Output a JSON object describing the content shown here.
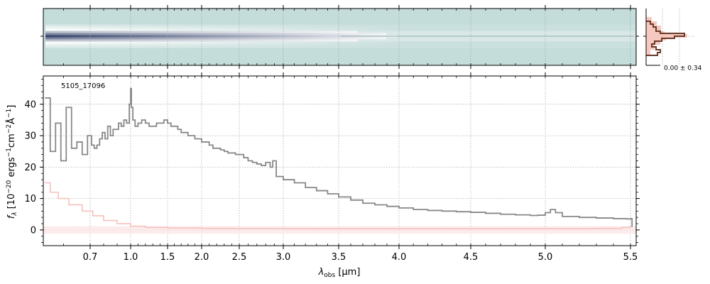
{
  "chart_data": [
    {
      "type": "heatmap",
      "panel": "2D spectrum",
      "x_range_um": [
        0.52,
        5.53
      ],
      "description_rows": "spatial",
      "grid": true,
      "colormap": [
        "#c4dcda",
        "#ffffff",
        "#2b3a63"
      ]
    },
    {
      "type": "line",
      "panel": "spatial profile",
      "annotation": "0.00 ± 0.34",
      "colors": {
        "fill": "#f5c9bf",
        "line": "#6b3a28"
      }
    },
    {
      "type": "line",
      "panel": "1D spectrum",
      "id_label": "5105_17096",
      "xlabel_main": "λ",
      "xlabel_sub": "obs",
      "xlabel_unit": " [μm]",
      "ylabel": "f_λ [10^-20 ergs^-1 cm^-2 Å^-1]",
      "x_scale": "custom (compressed at long wavelength)",
      "xlim": [
        0.52,
        5.53
      ],
      "ylim": [
        -5,
        49
      ],
      "xticks": [
        {
          "value": 0.7,
          "label": "0.7"
        },
        {
          "value": 1.0,
          "label": "1.0"
        },
        {
          "value": 1.5,
          "label": "1.5"
        },
        {
          "value": 2.0,
          "label": "2.0"
        },
        {
          "value": 2.5,
          "label": "2.5"
        },
        {
          "value": 3.0,
          "label": "3.0"
        },
        {
          "value": 3.5,
          "label": "3.5"
        },
        {
          "value": 4.0,
          "label": "4.0"
        },
        {
          "value": 4.5,
          "label": "4.5"
        },
        {
          "value": 5.0,
          "label": "5.0"
        },
        {
          "value": 5.5,
          "label": "5.5"
        }
      ],
      "yticks": [
        {
          "value": 0,
          "label": "0"
        },
        {
          "value": 10,
          "label": "10"
        },
        {
          "value": 20,
          "label": "20"
        },
        {
          "value": 30,
          "label": "30"
        },
        {
          "value": 40,
          "label": "40"
        }
      ],
      "grid": true,
      "series": [
        {
          "color": "#888888",
          "points": [
            [
              0.53,
              42
            ],
            [
              0.55,
              25
            ],
            [
              0.57,
              34
            ],
            [
              0.59,
              22
            ],
            [
              0.61,
              39
            ],
            [
              0.63,
              26
            ],
            [
              0.65,
              28
            ],
            [
              0.67,
              24
            ],
            [
              0.69,
              30
            ],
            [
              0.71,
              27
            ],
            [
              0.73,
              26
            ],
            [
              0.75,
              27
            ],
            [
              0.77,
              29
            ],
            [
              0.79,
              31
            ],
            [
              0.81,
              29
            ],
            [
              0.83,
              33
            ],
            [
              0.85,
              30
            ],
            [
              0.87,
              32
            ],
            [
              0.89,
              32
            ],
            [
              0.91,
              34
            ],
            [
              0.93,
              33
            ],
            [
              0.95,
              35
            ],
            [
              0.97,
              34
            ],
            [
              0.99,
              40
            ],
            [
              1.0,
              45
            ],
            [
              1.01,
              39
            ],
            [
              1.03,
              35
            ],
            [
              1.06,
              33
            ],
            [
              1.1,
              34
            ],
            [
              1.15,
              35
            ],
            [
              1.2,
              34
            ],
            [
              1.25,
              33
            ],
            [
              1.3,
              33
            ],
            [
              1.35,
              34
            ],
            [
              1.4,
              34
            ],
            [
              1.45,
              35
            ],
            [
              1.5,
              34
            ],
            [
              1.55,
              33
            ],
            [
              1.6,
              33
            ],
            [
              1.65,
              32
            ],
            [
              1.7,
              31
            ],
            [
              1.75,
              31
            ],
            [
              1.8,
              30
            ],
            [
              1.85,
              30
            ],
            [
              1.9,
              29
            ],
            [
              1.95,
              29
            ],
            [
              2.0,
              28
            ],
            [
              2.05,
              28
            ],
            [
              2.1,
              27
            ],
            [
              2.15,
              26
            ],
            [
              2.2,
              26
            ],
            [
              2.25,
              25.5
            ],
            [
              2.3,
              25
            ],
            [
              2.35,
              24.5
            ],
            [
              2.4,
              24.5
            ],
            [
              2.45,
              24
            ],
            [
              2.5,
              24
            ],
            [
              2.55,
              23
            ],
            [
              2.6,
              22
            ],
            [
              2.65,
              21.5
            ],
            [
              2.7,
              21
            ],
            [
              2.75,
              20.5
            ],
            [
              2.8,
              21.5
            ],
            [
              2.85,
              20
            ],
            [
              2.88,
              22
            ],
            [
              2.92,
              17
            ],
            [
              3.0,
              16
            ],
            [
              3.1,
              15
            ],
            [
              3.2,
              13.5
            ],
            [
              3.3,
              12.5
            ],
            [
              3.4,
              11.5
            ],
            [
              3.5,
              10.5
            ],
            [
              3.6,
              9.5
            ],
            [
              3.7,
              8.5
            ],
            [
              3.8,
              8
            ],
            [
              3.9,
              7.5
            ],
            [
              4.0,
              7
            ],
            [
              4.1,
              6.5
            ],
            [
              4.2,
              6.2
            ],
            [
              4.3,
              6
            ],
            [
              4.4,
              5.8
            ],
            [
              4.5,
              5.6
            ],
            [
              4.6,
              5.3
            ],
            [
              4.7,
              5
            ],
            [
              4.8,
              4.8
            ],
            [
              4.9,
              4.6
            ],
            [
              4.95,
              4.7
            ],
            [
              5.0,
              5.5
            ],
            [
              5.03,
              6.5
            ],
            [
              5.06,
              5.5
            ],
            [
              5.1,
              4.3
            ],
            [
              5.2,
              4
            ],
            [
              5.3,
              3.8
            ],
            [
              5.4,
              3.6
            ],
            [
              5.48,
              3.5
            ],
            [
              5.5,
              3.6
            ],
            [
              5.51,
              1
            ]
          ]
        },
        {
          "color": "#f5c1bc",
          "points": [
            [
              0.53,
              15
            ],
            [
              0.55,
              12
            ],
            [
              0.58,
              10
            ],
            [
              0.62,
              8
            ],
            [
              0.67,
              6
            ],
            [
              0.72,
              4.5
            ],
            [
              0.8,
              3
            ],
            [
              0.9,
              2
            ],
            [
              1.0,
              1.2
            ],
            [
              1.2,
              0.8
            ],
            [
              1.5,
              0.6
            ],
            [
              2.0,
              0.5
            ],
            [
              2.5,
              0.45
            ],
            [
              3.0,
              0.4
            ],
            [
              3.5,
              0.4
            ],
            [
              4.0,
              0.4
            ],
            [
              4.5,
              0.4
            ],
            [
              5.0,
              0.4
            ],
            [
              5.3,
              0.5
            ],
            [
              5.45,
              0.8
            ],
            [
              5.5,
              1.2
            ]
          ]
        }
      ]
    }
  ]
}
